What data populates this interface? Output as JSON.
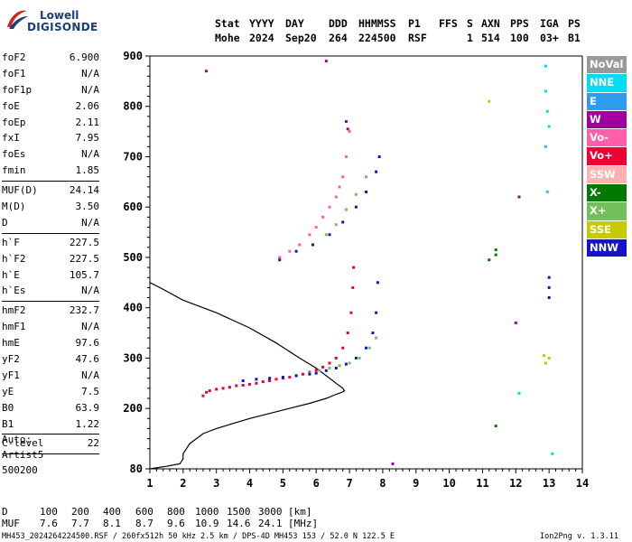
{
  "logo": {
    "top_text": "Lowell",
    "bottom_text": "DIGISONDE"
  },
  "header": {
    "labels": [
      "Stat",
      "YYYY",
      "DAY",
      "DDD",
      "HHMMSS",
      "P1",
      "FFS",
      "S",
      "AXN",
      "PPS",
      "IGA",
      "PS"
    ],
    "values": [
      "Mohe",
      "2024",
      "Sep20",
      "264",
      "224500",
      "RSF",
      "1",
      "514",
      "100",
      "03+",
      "B1"
    ]
  },
  "params_group1": [
    {
      "name": "foF2",
      "value": "6.900"
    },
    {
      "name": "foF1",
      "value": "N/A"
    },
    {
      "name": "foF1p",
      "value": "N/A"
    },
    {
      "name": "foE",
      "value": "2.06"
    },
    {
      "name": "foEp",
      "value": "2.11"
    },
    {
      "name": "fxI",
      "value": "7.95"
    },
    {
      "name": "foEs",
      "value": "N/A"
    },
    {
      "name": "fmin",
      "value": "1.85"
    }
  ],
  "params_group2": [
    {
      "name": "MUF(D)",
      "value": "24.14"
    },
    {
      "name": "M(D)",
      "value": "3.50"
    },
    {
      "name": "D",
      "value": "N/A"
    }
  ],
  "params_group3": [
    {
      "name": "h`F",
      "value": "227.5"
    },
    {
      "name": "h`F2",
      "value": "227.5"
    },
    {
      "name": "h`E",
      "value": "105.7"
    },
    {
      "name": "h`Es",
      "value": "N/A"
    }
  ],
  "params_group4": [
    {
      "name": "hmF2",
      "value": "232.7"
    },
    {
      "name": "hmF1",
      "value": "N/A"
    },
    {
      "name": "hmE",
      "value": "97.6"
    },
    {
      "name": "yF2",
      "value": "47.6"
    },
    {
      "name": "yF1",
      "value": "N/A"
    },
    {
      "name": "yE",
      "value": "7.5"
    },
    {
      "name": "B0",
      "value": "63.9"
    },
    {
      "name": "B1",
      "value": "1.22"
    }
  ],
  "clevel": {
    "name": "C-level",
    "value": "22"
  },
  "auto_block": [
    "Auto:",
    "Artist5",
    "500200"
  ],
  "legend": [
    {
      "label": "NoVal",
      "bg": "#999999",
      "fg": "#ffffff"
    },
    {
      "label": "NNE",
      "bg": "#00dcf0",
      "fg": "#ffffff"
    },
    {
      "label": "E",
      "bg": "#2d9bf0",
      "fg": "#ffffff"
    },
    {
      "label": "W",
      "bg": "#a0009f",
      "fg": "#ffffff"
    },
    {
      "label": "Vo-",
      "bg": "#ff5fa8",
      "fg": "#ffffff"
    },
    {
      "label": "Vo+",
      "bg": "#ee0033",
      "fg": "#ffffff"
    },
    {
      "label": "SSW",
      "bg": "#ffb2b2",
      "fg": "#ffffff"
    },
    {
      "label": "X-",
      "bg": "#007a00",
      "fg": "#ffffff"
    },
    {
      "label": "X+",
      "bg": "#73bf5c",
      "fg": "#ffffff"
    },
    {
      "label": "SSE",
      "bg": "#c9c900",
      "fg": "#ffffff"
    },
    {
      "label": "NNW",
      "bg": "#1414c8",
      "fg": "#ffffff"
    }
  ],
  "bottom": {
    "d_label": "D",
    "d_values": [
      "100",
      "200",
      "400",
      "600",
      "800",
      "1000",
      "1500",
      "3000"
    ],
    "d_unit": "[km]",
    "muf_label": "MUF",
    "muf_values": [
      "7.6",
      "7.7",
      "8.1",
      "8.7",
      "9.6",
      "10.9",
      "14.6",
      "24.1"
    ],
    "muf_unit": "[MHz]"
  },
  "footer": {
    "left": "MH453_2024264224500.RSF / 260fx512h 50 kHz 2.5 km / DPS-4D MH453 153 / 52.0 N 122.5 E",
    "right": "Ion2Png v. 1.3.11"
  },
  "chart_data": {
    "type": "scatter",
    "title": "",
    "xlabel": "",
    "ylabel": "",
    "xlim": [
      1,
      14
    ],
    "ylim": [
      80,
      900
    ],
    "x_ticks": [
      1,
      2,
      3,
      4,
      5,
      6,
      7,
      8,
      9,
      10,
      11,
      12,
      13,
      14
    ],
    "y_ticks": [
      80,
      200,
      300,
      400,
      500,
      600,
      700,
      800,
      900
    ],
    "grid": "off",
    "legend_placement": "right",
    "profile_line": {
      "name": "",
      "color": "#000000",
      "x": [
        1.0,
        1.5,
        1.9,
        2.0,
        2.0,
        2.2,
        2.6,
        3.0,
        3.5,
        4.0,
        4.6,
        5.2,
        5.8,
        6.3,
        6.6,
        6.8,
        6.85,
        6.8,
        6.6,
        6.3,
        6.0,
        5.5,
        4.8,
        4.0,
        3.0,
        2.0,
        1.3,
        1.0
      ],
      "y": [
        80,
        85,
        90,
        100,
        110,
        130,
        150,
        160,
        170,
        180,
        190,
        200,
        210,
        220,
        228,
        232.7,
        235,
        240,
        250,
        265,
        280,
        300,
        330,
        360,
        390,
        415,
        440,
        450
      ]
    },
    "series": [
      {
        "name": "Vo+",
        "color": "#ee0033",
        "x": [
          2.6,
          2.7,
          2.8,
          3.0,
          3.2,
          3.4,
          3.6,
          3.8,
          4.0,
          4.2,
          4.4,
          4.6,
          4.8,
          5.0,
          5.2,
          5.4,
          5.6,
          5.8,
          6.0,
          6.2,
          6.4,
          6.6,
          6.8,
          6.95,
          7.05,
          7.1,
          7.12
        ],
        "y": [
          225,
          232,
          235,
          238,
          240,
          242,
          245,
          246,
          248,
          250,
          253,
          255,
          258,
          260,
          262,
          265,
          268,
          272,
          276,
          282,
          290,
          300,
          320,
          350,
          390,
          440,
          480
        ]
      },
      {
        "name": "Vo-",
        "color": "#ff5fa8",
        "x": [
          4.9,
          5.2,
          5.5,
          5.8,
          6.0,
          6.2,
          6.4,
          6.6,
          6.7,
          6.8,
          6.9,
          7.0
        ],
        "y": [
          500,
          512,
          525,
          545,
          560,
          580,
          600,
          620,
          640,
          660,
          700,
          750
        ]
      },
      {
        "name": "X+",
        "color": "#73bf5c",
        "x": [
          5.8,
          6.1,
          6.4,
          6.7,
          7.0,
          7.3,
          7.6,
          7.8,
          6.3,
          6.6,
          6.9,
          7.2,
          7.5
        ],
        "y": [
          270,
          275,
          280,
          285,
          290,
          300,
          320,
          340,
          545,
          565,
          595,
          625,
          660
        ]
      },
      {
        "name": "NNW",
        "color": "#1414c8",
        "x": [
          3.8,
          4.2,
          4.6,
          5.0,
          5.4,
          5.8,
          6.0,
          6.3,
          6.6,
          6.9,
          7.2,
          7.5,
          7.7,
          7.8,
          7.85,
          4.9,
          5.4,
          5.9,
          6.4,
          6.8,
          7.2,
          7.5,
          7.8,
          7.9,
          13.0,
          13.0,
          13.0
        ],
        "y": [
          255,
          258,
          260,
          262,
          265,
          268,
          270,
          275,
          280,
          288,
          300,
          320,
          350,
          390,
          450,
          495,
          512,
          525,
          545,
          570,
          600,
          630,
          670,
          700,
          420,
          440,
          460
        ]
      },
      {
        "name": "NNE",
        "color": "#00dcf0",
        "x": [
          12.9,
          12.9,
          12.95,
          13.0,
          12.9,
          12.95,
          12.1,
          13.1
        ],
        "y": [
          880,
          830,
          790,
          760,
          720,
          630,
          230,
          110
        ]
      },
      {
        "name": "W",
        "color": "#a0009f",
        "x": [
          2.7,
          6.3,
          12.1,
          8.3,
          12.0,
          6.9,
          6.95
        ],
        "y": [
          870,
          890,
          620,
          90,
          370,
          770,
          755
        ]
      },
      {
        "name": "X-",
        "color": "#007a00",
        "x": [
          11.4,
          11.4,
          11.4,
          11.2
        ],
        "y": [
          165,
          505,
          515,
          495
        ]
      },
      {
        "name": "SSE",
        "color": "#c9c900",
        "x": [
          11.2,
          12.9,
          12.85,
          13.0
        ],
        "y": [
          810,
          290,
          305,
          300
        ]
      }
    ]
  }
}
